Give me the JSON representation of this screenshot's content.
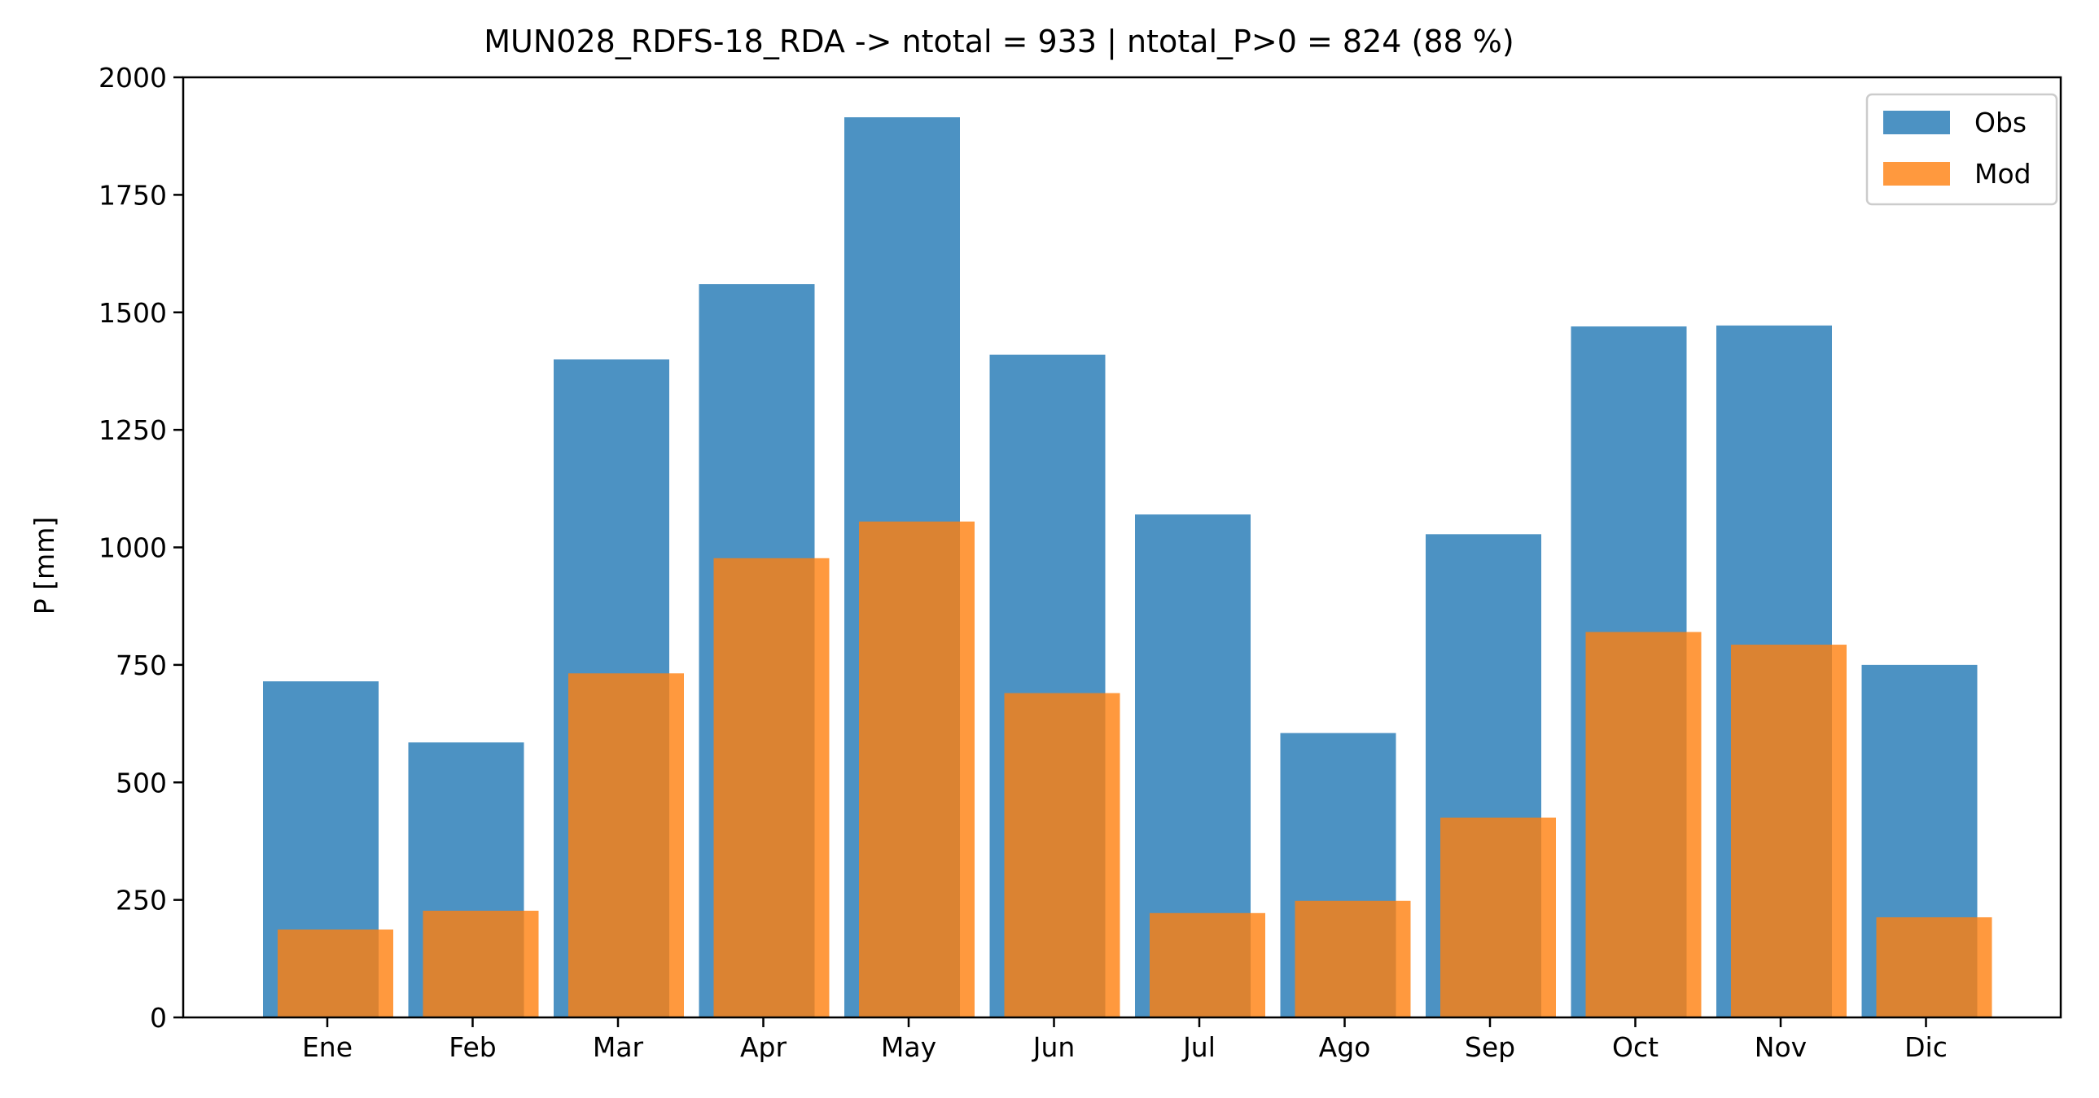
{
  "chart_data": {
    "type": "bar",
    "title": "MUN028_RDFS-18_RDA -> ntotal = 933 | ntotal_P>0 = 824 (88 %)",
    "xlabel": "",
    "ylabel": "P [mm]",
    "ylim": [
      0,
      2000
    ],
    "yticks": [
      0,
      250,
      500,
      750,
      1000,
      1250,
      1500,
      1750,
      2000
    ],
    "grid": false,
    "legend_position": "top-right",
    "categories": [
      "Ene",
      "Feb",
      "Mar",
      "Apr",
      "May",
      "Jun",
      "Jul",
      "Ago",
      "Sep",
      "Oct",
      "Nov",
      "Dic"
    ],
    "series": [
      {
        "name": "Obs",
        "color": "#1f77b4",
        "values": [
          715,
          585,
          1400,
          1560,
          1915,
          1410,
          1070,
          605,
          1028,
          1470,
          1472,
          750
        ]
      },
      {
        "name": "Mod",
        "color": "#ff7f0e",
        "values": [
          187,
          227,
          732,
          977,
          1055,
          690,
          222,
          248,
          425,
          820,
          793,
          213
        ]
      }
    ]
  }
}
